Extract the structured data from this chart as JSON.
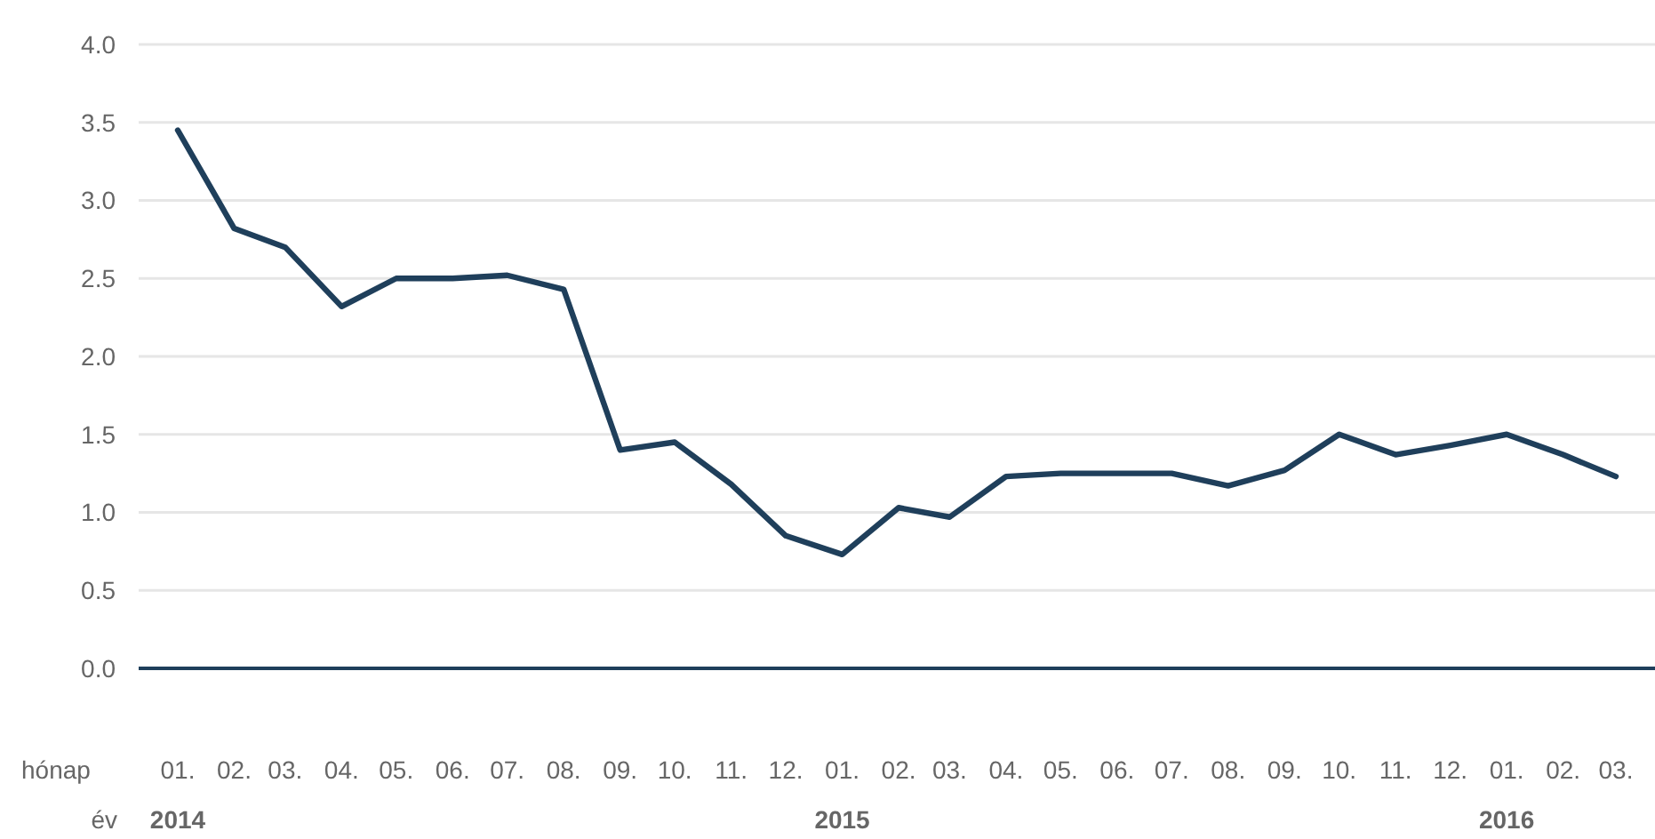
{
  "chart_data": {
    "type": "line",
    "xlabel": "hónap",
    "x": [
      "2014-01",
      "2014-02",
      "2014-03",
      "2014-04",
      "2014-05",
      "2014-06",
      "2014-07",
      "2014-08",
      "2014-09",
      "2014-10",
      "2014-11",
      "2014-12",
      "2015-01",
      "2015-02",
      "2015-03",
      "2015-04",
      "2015-05",
      "2015-06",
      "2015-07",
      "2015-08",
      "2015-09",
      "2015-10",
      "2015-11",
      "2015-12",
      "2016-01",
      "2016-02",
      "2016-03"
    ],
    "series": [
      {
        "color": "#1f3f5b",
        "values": [
          3.45,
          2.82,
          2.7,
          2.32,
          2.5,
          2.5,
          2.52,
          2.43,
          1.4,
          1.45,
          1.18,
          0.85,
          0.73,
          1.03,
          0.97,
          1.23,
          1.25,
          1.25,
          1.25,
          1.17,
          1.27,
          1.5,
          1.37,
          1.43,
          1.5,
          1.37,
          1.23
        ]
      }
    ],
    "xlim": [
      "2014-01",
      "2016-03"
    ],
    "xticks": [
      {
        "value": "2014-01",
        "label": "01.\n2014"
      },
      {
        "value": "2014-02",
        "label": "02."
      },
      {
        "value": "2014-03",
        "label": "03."
      },
      {
        "value": "2014-04",
        "label": "04."
      },
      {
        "value": "2014-05",
        "label": "05."
      },
      {
        "value": "2014-06",
        "label": "06."
      },
      {
        "value": "2014-07",
        "label": "07."
      },
      {
        "value": "2014-08",
        "label": "08."
      },
      {
        "value": "2014-09",
        "label": "09."
      },
      {
        "value": "2014-10",
        "label": "10."
      },
      {
        "value": "2014-11",
        "label": "11."
      },
      {
        "value": "2014-12",
        "label": "12."
      },
      {
        "value": "2015-01",
        "label": "01.\n2015"
      },
      {
        "value": "2015-02",
        "label": "02."
      },
      {
        "value": "2015-03",
        "label": "03."
      },
      {
        "value": "2015-04",
        "label": "04."
      },
      {
        "value": "2015-05",
        "label": "05."
      },
      {
        "value": "2015-06",
        "label": "06."
      },
      {
        "value": "2015-07",
        "label": "07."
      },
      {
        "value": "2015-08",
        "label": "08."
      },
      {
        "value": "2015-09",
        "label": "09."
      },
      {
        "value": "2015-10",
        "label": "10."
      },
      {
        "value": "2015-11",
        "label": "11."
      },
      {
        "value": "2015-12",
        "label": "12."
      },
      {
        "value": "2016-01",
        "label": "01.\n2016"
      },
      {
        "value": "2016-02",
        "label": "02."
      },
      {
        "value": "2016-03",
        "label": "03."
      }
    ],
    "ylim": [
      0,
      4
    ],
    "yticks": [
      {
        "value": 0,
        "label": "0.0"
      },
      {
        "value": 0.5,
        "label": "0.5"
      },
      {
        "value": 1,
        "label": "1.0"
      },
      {
        "value": 1.5,
        "label": "1.5"
      },
      {
        "value": 2,
        "label": "2.0"
      },
      {
        "value": 2.5,
        "label": "2.5"
      },
      {
        "value": 3,
        "label": "3.0"
      },
      {
        "value": 3.5,
        "label": "3.5"
      },
      {
        "value": 4,
        "label": "4.0"
      }
    ],
    "grid": "y",
    "line_style": "solid",
    "marker": "none",
    "annotations": [
      "év"
    ]
  }
}
